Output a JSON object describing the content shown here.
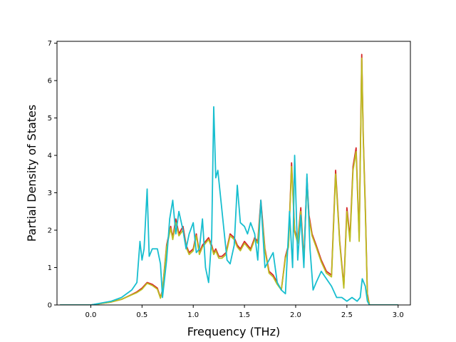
{
  "chart_data": {
    "type": "line",
    "title": "",
    "xlabel": "Frequency (THz)",
    "ylabel": "Partial Density of States",
    "xlim": [
      -0.33,
      3.12
    ],
    "ylim": [
      0,
      7.05
    ],
    "xticks": [
      0.0,
      0.5,
      1.0,
      1.5,
      2.0,
      2.5,
      3.0
    ],
    "xtick_labels": [
      "0.0",
      "0.5",
      "1.0",
      "1.5",
      "2.0",
      "2.5",
      "3.0"
    ],
    "yticks": [
      0,
      1,
      2,
      3,
      4,
      5,
      6,
      7
    ],
    "ytick_labels": [
      "0",
      "1",
      "2",
      "3",
      "4",
      "5",
      "6",
      "7"
    ],
    "grid": false,
    "legend": "none",
    "series": [
      {
        "color": "#d62728",
        "x": [
          -0.3,
          0.0,
          0.2,
          0.3,
          0.4,
          0.45,
          0.5,
          0.55,
          0.6,
          0.65,
          0.68,
          0.7,
          0.74,
          0.78,
          0.8,
          0.83,
          0.86,
          0.9,
          0.93,
          0.96,
          1.0,
          1.03,
          1.06,
          1.09,
          1.12,
          1.15,
          1.18,
          1.2,
          1.22,
          1.25,
          1.28,
          1.32,
          1.36,
          1.4,
          1.43,
          1.46,
          1.5,
          1.53,
          1.56,
          1.6,
          1.63,
          1.66,
          1.7,
          1.74,
          1.78,
          1.82,
          1.86,
          1.9,
          1.93,
          1.96,
          1.99,
          2.02,
          2.05,
          2.08,
          2.11,
          2.13,
          2.16,
          2.2,
          2.25,
          2.3,
          2.35,
          2.39,
          2.43,
          2.47,
          2.5,
          2.53,
          2.56,
          2.59,
          2.62,
          2.645,
          2.66,
          2.68,
          2.7,
          2.72,
          3.0
        ],
        "y": [
          0,
          0,
          0.08,
          0.15,
          0.28,
          0.35,
          0.45,
          0.6,
          0.55,
          0.45,
          0.2,
          0.4,
          1.6,
          2.1,
          1.8,
          2.3,
          1.9,
          2.1,
          1.6,
          1.4,
          1.5,
          1.9,
          1.4,
          1.6,
          1.7,
          1.8,
          1.6,
          1.4,
          1.5,
          1.3,
          1.3,
          1.4,
          1.9,
          1.8,
          1.6,
          1.5,
          1.7,
          1.6,
          1.5,
          1.8,
          1.7,
          2.8,
          1.5,
          0.9,
          0.8,
          0.6,
          0.4,
          1.3,
          1.6,
          3.8,
          2.0,
          1.7,
          2.6,
          1.2,
          3.4,
          2.4,
          1.9,
          1.6,
          1.2,
          0.9,
          0.8,
          3.6,
          1.7,
          0.5,
          2.6,
          1.8,
          3.7,
          4.2,
          1.8,
          6.7,
          4.5,
          2.6,
          0.3,
          0,
          0
        ]
      },
      {
        "color": "#bcbd22",
        "x": [
          -0.3,
          0.0,
          0.2,
          0.3,
          0.4,
          0.45,
          0.5,
          0.55,
          0.6,
          0.65,
          0.68,
          0.7,
          0.74,
          0.78,
          0.8,
          0.83,
          0.86,
          0.9,
          0.93,
          0.96,
          1.0,
          1.03,
          1.06,
          1.09,
          1.12,
          1.15,
          1.18,
          1.2,
          1.22,
          1.25,
          1.28,
          1.32,
          1.36,
          1.4,
          1.43,
          1.46,
          1.5,
          1.53,
          1.56,
          1.6,
          1.63,
          1.66,
          1.7,
          1.74,
          1.78,
          1.82,
          1.86,
          1.9,
          1.93,
          1.96,
          1.99,
          2.02,
          2.05,
          2.08,
          2.11,
          2.13,
          2.16,
          2.2,
          2.25,
          2.3,
          2.35,
          2.39,
          2.43,
          2.47,
          2.5,
          2.53,
          2.56,
          2.59,
          2.62,
          2.645,
          2.66,
          2.68,
          2.7,
          2.72,
          3.0
        ],
        "y": [
          0,
          0,
          0.08,
          0.15,
          0.27,
          0.33,
          0.42,
          0.58,
          0.52,
          0.42,
          0.18,
          0.38,
          1.55,
          2.05,
          1.75,
          2.2,
          1.85,
          2.0,
          1.55,
          1.35,
          1.45,
          1.85,
          1.35,
          1.55,
          1.65,
          1.75,
          1.55,
          1.35,
          1.45,
          1.25,
          1.25,
          1.35,
          1.85,
          1.75,
          1.55,
          1.45,
          1.65,
          1.55,
          1.45,
          1.75,
          1.65,
          2.7,
          1.45,
          0.85,
          0.75,
          0.55,
          0.4,
          1.25,
          1.55,
          3.7,
          1.95,
          1.65,
          2.5,
          1.15,
          3.3,
          2.3,
          1.85,
          1.55,
          1.15,
          0.85,
          0.75,
          3.5,
          1.65,
          0.45,
          2.5,
          1.7,
          3.6,
          4.1,
          1.7,
          6.6,
          4.4,
          2.5,
          0.25,
          0,
          0
        ]
      },
      {
        "color": "#17becf",
        "x": [
          -0.3,
          0.0,
          0.2,
          0.3,
          0.4,
          0.45,
          0.48,
          0.5,
          0.52,
          0.55,
          0.57,
          0.6,
          0.65,
          0.68,
          0.7,
          0.74,
          0.77,
          0.8,
          0.83,
          0.86,
          0.9,
          0.93,
          0.96,
          1.0,
          1.03,
          1.06,
          1.09,
          1.12,
          1.15,
          1.18,
          1.2,
          1.22,
          1.24,
          1.27,
          1.3,
          1.33,
          1.36,
          1.4,
          1.43,
          1.46,
          1.5,
          1.53,
          1.56,
          1.6,
          1.63,
          1.66,
          1.7,
          1.74,
          1.78,
          1.82,
          1.86,
          1.9,
          1.94,
          1.97,
          1.99,
          2.02,
          2.05,
          2.08,
          2.11,
          2.14,
          2.17,
          2.2,
          2.25,
          2.3,
          2.35,
          2.4,
          2.45,
          2.5,
          2.55,
          2.6,
          2.63,
          2.65,
          2.68,
          2.7,
          2.72,
          3.0
        ],
        "y": [
          0,
          0,
          0.1,
          0.2,
          0.4,
          0.6,
          1.7,
          1.2,
          1.5,
          3.1,
          1.3,
          1.5,
          1.5,
          1.1,
          0.2,
          1.2,
          2.3,
          2.8,
          1.9,
          2.5,
          2.0,
          1.5,
          1.9,
          2.2,
          1.4,
          1.5,
          2.3,
          1.0,
          0.6,
          1.8,
          5.3,
          3.4,
          3.6,
          2.8,
          2.0,
          1.2,
          1.1,
          1.6,
          3.2,
          2.2,
          2.1,
          1.9,
          2.2,
          1.9,
          1.2,
          2.8,
          1.0,
          1.2,
          1.4,
          0.6,
          0.4,
          0.3,
          2.5,
          1.0,
          4.0,
          1.2,
          2.4,
          1.0,
          3.5,
          1.5,
          0.4,
          0.6,
          0.9,
          0.7,
          0.5,
          0.2,
          0.2,
          0.1,
          0.2,
          0.1,
          0.2,
          0.7,
          0.5,
          0.1,
          0,
          0
        ]
      }
    ]
  }
}
